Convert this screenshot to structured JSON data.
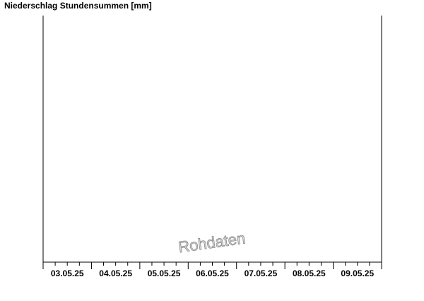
{
  "chart_data": {
    "type": "bar",
    "title": "Niederschlag Stundensummen [mm]",
    "categories": [
      "03.05.25",
      "04.05.25",
      "05.05.25",
      "06.05.25",
      "07.05.25",
      "08.05.25",
      "09.05.25"
    ],
    "watermark": "Rohdaten"
  }
}
